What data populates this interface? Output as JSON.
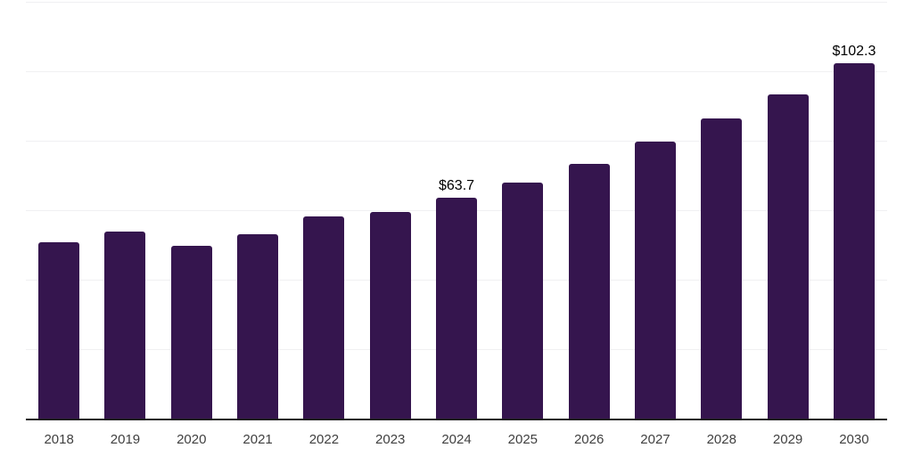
{
  "chart_data": {
    "type": "bar",
    "title": "",
    "xlabel": "",
    "ylabel": "",
    "categories": [
      "2018",
      "2019",
      "2020",
      "2021",
      "2022",
      "2023",
      "2024",
      "2025",
      "2026",
      "2027",
      "2028",
      "2029",
      "2030"
    ],
    "values": [
      50.8,
      53.8,
      49.8,
      53.2,
      58.3,
      59.4,
      63.7,
      67.9,
      73.4,
      79.7,
      86.3,
      93.4,
      102.3
    ],
    "value_prefix": "$",
    "labeled_points": {
      "2024": "$63.7",
      "2030": "$102.3"
    },
    "ylim": [
      0,
      120
    ],
    "grid_interval": 20,
    "gridlines_at": [
      20,
      40,
      60,
      80,
      100,
      120
    ],
    "y_axis_labels_visible": false,
    "legend": false,
    "grid": true
  },
  "colors": {
    "background": "#ffffff",
    "bar": "#35154e",
    "axis_line": "#1f1f1f",
    "gridline": "#f0f0f2",
    "x_label": "#404040",
    "data_label": "#000000"
  }
}
